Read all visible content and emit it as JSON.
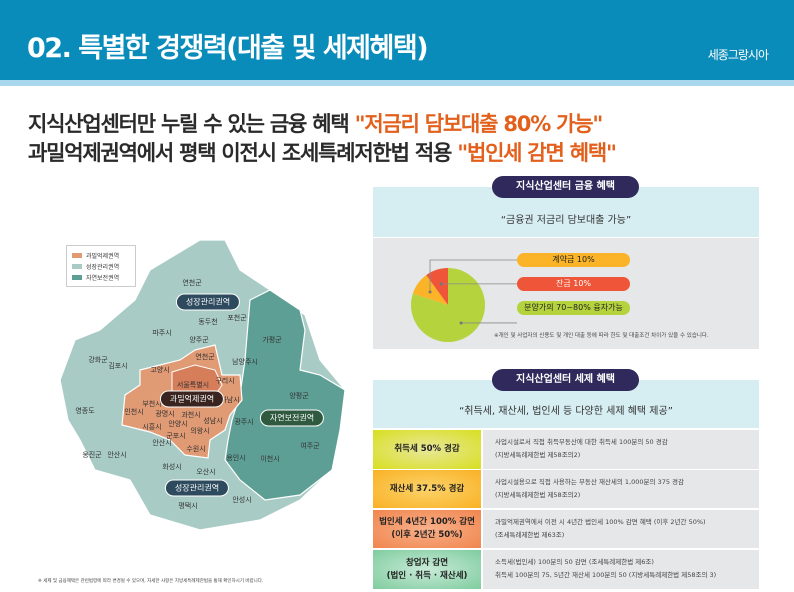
{
  "header": {
    "title": "02. 특별한 경쟁력(대출 및 세제혜택)",
    "brand": "세종그랑시아"
  },
  "headline": {
    "line1": "지식산업센터만 누릴 수 있는 금융 혜택 ",
    "line1_highlight": "\"저금리 담보대출 80% 가능\"",
    "line2": "과밀억제권역에서 평택 이전시 조세특례저한법 적용 ",
    "line2_highlight": "\"법인세 감면 혜택\""
  },
  "finance": {
    "title": "지식산업센터 금융 혜택",
    "subtitle": "“금융권 저금리 담보대출 가능”",
    "pie": [
      {
        "label": "계약금 10%",
        "value": 10,
        "color": "#fbb427"
      },
      {
        "label": "잔금 10%",
        "value": 10,
        "color": "#ef5538"
      },
      {
        "label": "분양가의 70~80% 융자가능",
        "value": 80,
        "color": "#b5d33d"
      }
    ],
    "note": "※개인 및 사업자의 신용도 및 개인 대출 등에 따라 한도 및 대출조건 차이가 있을 수 있습니다."
  },
  "tax": {
    "title": "지식산업센터 세제 혜택",
    "subtitle": "“취득세, 재산세, 법인세 등 다양한 세제 혜택 제공”",
    "rows": [
      {
        "key": "취득세 50% 경감",
        "key2": "",
        "d1": "사업시설로서 직접 취득부동산에 대한 취득세 100분의 50 경감",
        "d2": "(지방세특례제한법 제58조의2)"
      },
      {
        "key": "재산세 37.5% 경감",
        "key2": "",
        "d1": "사업시설용으로 직접 사용하는 부동산 재산세의 1,000분의 375 경감",
        "d2": "(지방세특례제한법 제58조의2)"
      },
      {
        "key": "법인세 4년간 100% 감면",
        "key2": "(이후 2년간 50%)",
        "d1": "과밀억제권역에서 이전 시 4년간 법인세 100% 감면 혜택 (이후 2년간 50%)",
        "d2": "(조세특례제한법 제63조)"
      },
      {
        "key": "창업자 감면",
        "key2": "(법인 · 취득 · 재산세)",
        "d1": "소득세(법인세) 100분의 50 감면 (조세특례제한법 제6조)",
        "d2": "취득세 100분의 75, 5년간 재산세 100분의 50 (지방세특례제한법 제58조의 3)"
      }
    ]
  },
  "map": {
    "legend": [
      {
        "label": "과밀억제권역",
        "color": "#e09a74"
      },
      {
        "label": "성장관리권역",
        "color": "#a9cbc6"
      },
      {
        "label": "자연보전권역",
        "color": "#5e9f95"
      }
    ],
    "zones": {
      "growth_top": "성장관리권역",
      "overcrowded": "과밀억제권역",
      "nature": "자연보전권역",
      "growth_bottom": "성장관리권역"
    },
    "places": [
      "연천군",
      "동두천",
      "포천군",
      "파주시",
      "가평군",
      "양주군",
      "강화군",
      "연천군",
      "남양주시",
      "김포시",
      "고양시",
      "구리시",
      "서울특별시",
      "양평군",
      "부천시",
      "하남시",
      "영종도",
      "인천시",
      "광명시",
      "과천시",
      "안양시",
      "성남시",
      "광주시",
      "시흥시",
      "의왕시",
      "군포시",
      "안산시",
      "여주군",
      "수원시",
      "옹진군",
      "안산시",
      "용인시",
      "이천시",
      "화성시",
      "오산시",
      "안성시",
      "평택시"
    ],
    "footnote": "※ 세제 및 금융혜택은 관련법령에 따라 변경될 수 있으며, 자세한 사항은 지방세특례제한법을 통해 확인하시기 바랍니다."
  }
}
